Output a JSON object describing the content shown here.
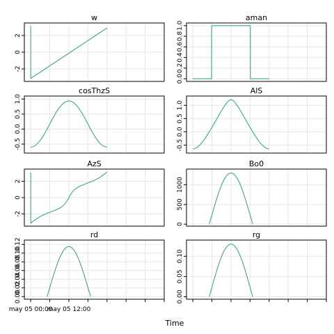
{
  "figure": {
    "xlabel": "Time"
  },
  "colors": {
    "line": "#2a9d7c",
    "grid": "#e6e6e6",
    "frame": "#000000"
  },
  "chart_data": [
    {
      "type": "line",
      "title": "w",
      "ylim": [
        -3.5,
        3.5
      ],
      "yticks": [
        -2,
        0,
        2
      ],
      "ytick_labels": [
        "-2",
        "0",
        "2"
      ],
      "x_hours": [
        0,
        0.0001,
        24
      ],
      "x_break": 0.0001,
      "points": [
        [
          0,
          2.9
        ],
        [
          0,
          3.14
        ],
        [
          0.0001,
          -3.14
        ],
        [
          24,
          2.9
        ]
      ]
    },
    {
      "type": "line",
      "title": "aman",
      "ylim": [
        -0.05,
        1.05
      ],
      "yticks": [
        0,
        0.2,
        0.4,
        0.6,
        0.8,
        1.0
      ],
      "ytick_labels": [
        "0.0",
        "0.2",
        "0.4",
        "0.6",
        "0.8",
        "1.0"
      ],
      "points": [
        [
          0,
          0
        ],
        [
          5.9,
          0
        ],
        [
          5.9,
          1
        ],
        [
          18.1,
          1
        ],
        [
          18.1,
          0
        ],
        [
          24,
          0
        ]
      ]
    },
    {
      "type": "line",
      "title": "cosThzS",
      "ylim": [
        -0.8,
        1.1
      ],
      "yticks": [
        -0.5,
        0,
        0.5,
        1.0
      ],
      "ytick_labels": [
        "-0.5",
        "0.0",
        "0.5",
        "1.0"
      ],
      "func": "cosz"
    },
    {
      "type": "line",
      "title": "AlS",
      "ylim": [
        -0.8,
        1.35
      ],
      "yticks": [
        -0.5,
        0,
        0.5,
        1.0
      ],
      "ytick_labels": [
        "-0.5",
        "0.0",
        "0.5",
        "1.0"
      ],
      "func": "alt"
    },
    {
      "type": "line",
      "title": "AzS",
      "ylim": [
        -3.5,
        3.5
      ],
      "yticks": [
        -2,
        0,
        2
      ],
      "ytick_labels": [
        "-2",
        "0",
        "2"
      ],
      "func": "az"
    },
    {
      "type": "line",
      "title": "Bo0",
      "ylim": [
        -50,
        1400
      ],
      "yticks": [
        0,
        500,
        1000
      ],
      "ytick_labels": [
        "0",
        "500",
        "1000"
      ],
      "func": "bell",
      "peak": 1300
    },
    {
      "type": "line",
      "title": "rd",
      "ylim": [
        -0.006,
        0.13
      ],
      "yticks": [
        0,
        0.02,
        0.04,
        0.06,
        0.08,
        0.1,
        0.12
      ],
      "ytick_labels": [
        "0.00",
        "0.02",
        "0.04",
        "0.06",
        "0.08",
        "0.10",
        "0.12"
      ],
      "func": "bell",
      "peak": 0.115
    },
    {
      "type": "line",
      "title": "rg",
      "ylim": [
        -0.006,
        0.14
      ],
      "yticks": [
        0,
        0.05,
        0.1
      ],
      "ytick_labels": [
        "0.00",
        "0.05",
        "0.10"
      ],
      "func": "bell",
      "peak": 0.13
    }
  ],
  "xaxis": {
    "range_hours": [
      -2,
      42
    ],
    "tick_hours": [
      0,
      6,
      12,
      18,
      24,
      30,
      36,
      42
    ],
    "labels": [
      {
        "hour": 0,
        "text": "may 05 00:00"
      },
      {
        "hour": 12,
        "text": "may 05 12:00"
      }
    ]
  }
}
